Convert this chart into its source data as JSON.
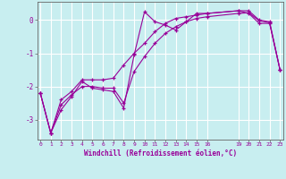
{
  "xlabel": "Windchill (Refroidissement éolien,°C)",
  "bg_color": "#c8eef0",
  "line_color": "#990099",
  "grid_color": "#ffffff",
  "spine_color": "#666666",
  "xlim": [
    -0.3,
    23.3
  ],
  "ylim": [
    -3.6,
    0.55
  ],
  "yticks": [
    0,
    -1,
    -2,
    -3
  ],
  "xticks": [
    0,
    1,
    2,
    3,
    4,
    5,
    6,
    7,
    8,
    9,
    10,
    11,
    12,
    13,
    14,
    15,
    16,
    19,
    20,
    21,
    22,
    23
  ],
  "series1_x": [
    0,
    1,
    2,
    3,
    4,
    5,
    6,
    7,
    8,
    9,
    10,
    11,
    12,
    13,
    14,
    15,
    16,
    19,
    20,
    21,
    22,
    23
  ],
  "series1_y": [
    -2.2,
    -3.4,
    -2.7,
    -2.3,
    -1.85,
    -2.05,
    -2.1,
    -2.15,
    -2.65,
    -1.05,
    0.25,
    -0.05,
    -0.15,
    -0.3,
    -0.05,
    0.2,
    0.2,
    0.28,
    0.2,
    -0.1,
    -0.1,
    -1.5
  ],
  "series2_x": [
    0,
    1,
    2,
    3,
    4,
    5,
    6,
    7,
    8,
    9,
    10,
    11,
    12,
    13,
    14,
    15,
    16,
    19,
    20,
    21,
    22,
    23
  ],
  "series2_y": [
    -2.2,
    -3.4,
    -2.4,
    -2.15,
    -1.8,
    -1.8,
    -1.8,
    -1.75,
    -1.35,
    -1.0,
    -0.7,
    -0.35,
    -0.1,
    0.05,
    0.1,
    0.15,
    0.2,
    0.28,
    0.28,
    0.0,
    -0.05,
    -1.5
  ],
  "series3_x": [
    0,
    1,
    2,
    3,
    4,
    5,
    6,
    7,
    8,
    9,
    10,
    11,
    12,
    13,
    14,
    15,
    16,
    19,
    20,
    21,
    22,
    23
  ],
  "series3_y": [
    -2.2,
    -3.4,
    -2.55,
    -2.25,
    -2.0,
    -2.0,
    -2.05,
    -2.05,
    -2.5,
    -1.55,
    -1.1,
    -0.7,
    -0.4,
    -0.2,
    -0.05,
    0.05,
    0.1,
    0.2,
    0.22,
    -0.02,
    -0.08,
    -1.5
  ]
}
